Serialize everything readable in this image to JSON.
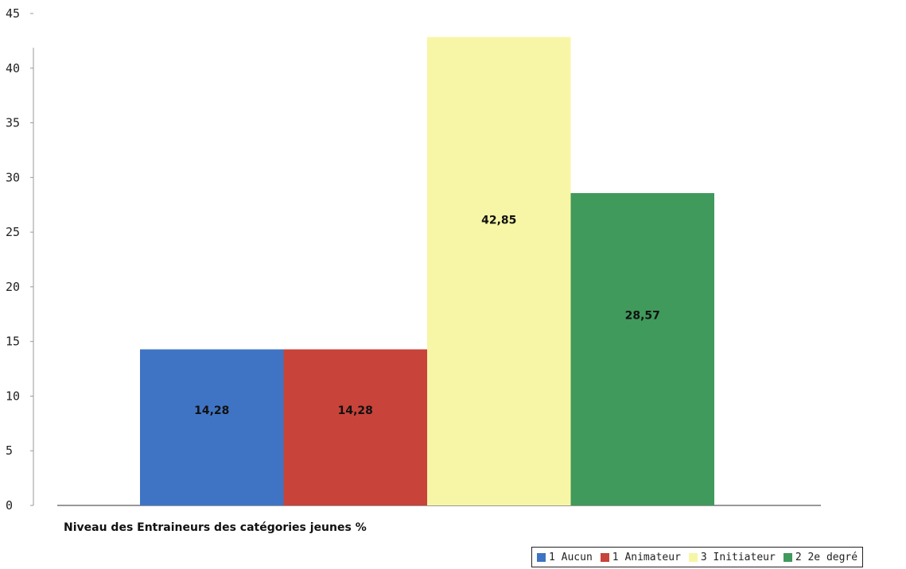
{
  "chart_data": {
    "type": "bar",
    "title": "",
    "xlabel": "Niveau des Entraineurs des catégories jeunes  %",
    "ylabel": "",
    "ylim": [
      0,
      45
    ],
    "yticks": [
      0,
      5,
      10,
      15,
      20,
      25,
      30,
      35,
      40,
      45
    ],
    "grid": false,
    "legend_position": "bottom-right",
    "series": [
      {
        "name": "1 Aucun",
        "value": 14.28,
        "label": "14,28",
        "color": "#3f74c4"
      },
      {
        "name": "1 Animateur",
        "value": 14.28,
        "label": "14,28",
        "color": "#c8433a"
      },
      {
        "name": "3 Initiateur",
        "value": 42.85,
        "label": "42,85",
        "color": "#f7f6a6"
      },
      {
        "name": "2 2e degré",
        "value": 28.57,
        "label": "28,57",
        "color": "#3f9a5c"
      }
    ]
  }
}
